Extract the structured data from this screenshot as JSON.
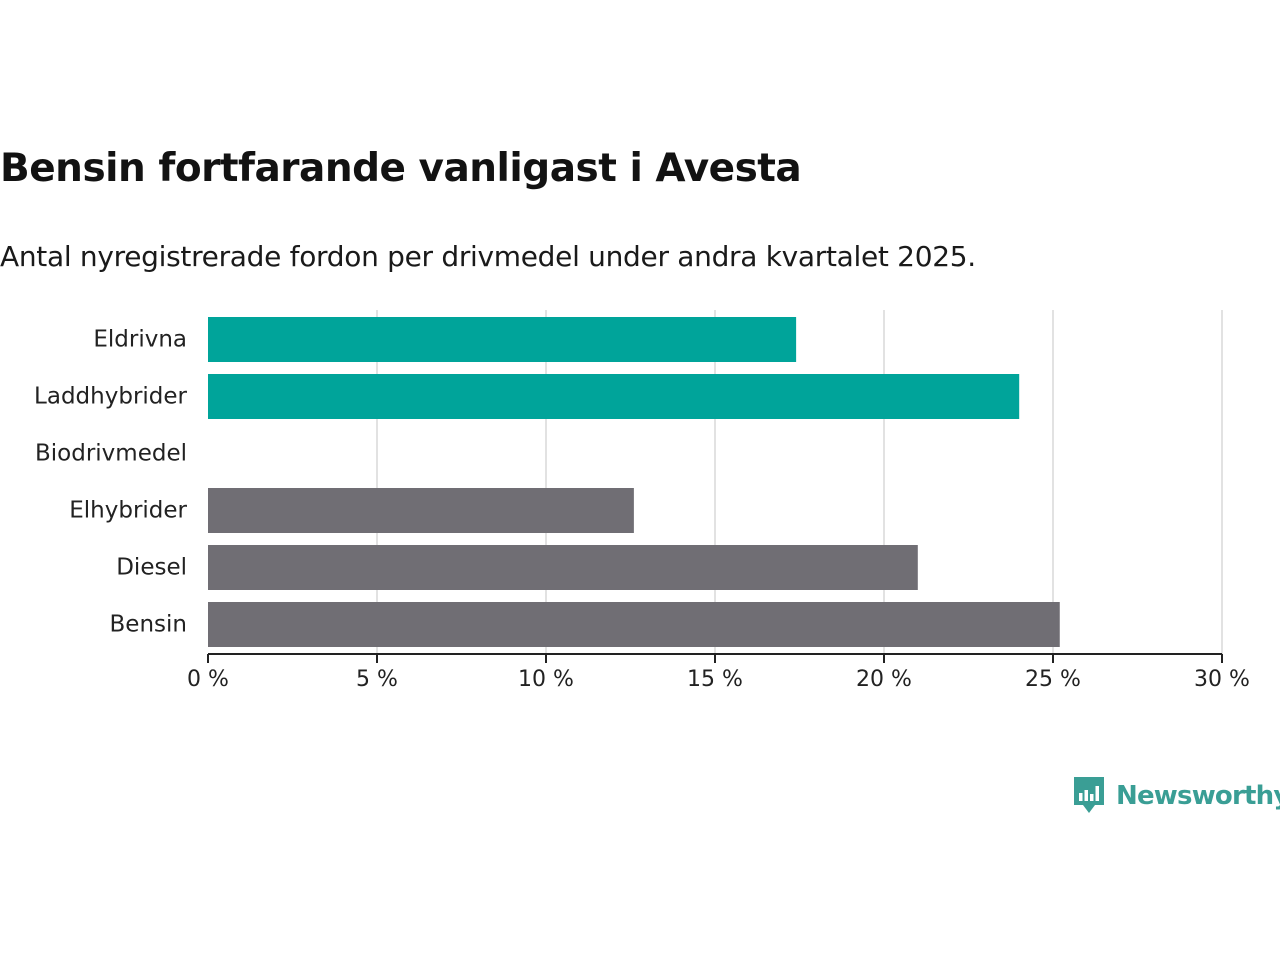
{
  "header": {
    "title": "Bensin fortfarande vanligast i Avesta",
    "subtitle": "Antal nyregistrerade fordon per drivmedel under andra kvartalet 2025."
  },
  "brand": {
    "name": "Newsworthy",
    "icon": "newsworthy-logo-icon",
    "color": "#3a9e95"
  },
  "chart_data": {
    "type": "bar",
    "orientation": "horizontal",
    "categories": [
      "Eldrivna",
      "Laddhybrider",
      "Biodrivmedel",
      "Elhybrider",
      "Diesel",
      "Bensin"
    ],
    "values": [
      17.4,
      24.0,
      0,
      12.6,
      21.0,
      25.2
    ],
    "colors": [
      "#00a49a",
      "#00a49a",
      "#00a49a",
      "#706e74",
      "#706e74",
      "#706e74"
    ],
    "xlim": [
      0,
      30
    ],
    "xticks": [
      0,
      5,
      10,
      15,
      20,
      25,
      30
    ],
    "xtick_labels": [
      "0 %",
      "5 %",
      "10 %",
      "15 %",
      "20 %",
      "25 %",
      "30 %"
    ],
    "grid": "vertical",
    "title": "Bensin fortfarande vanligast i Avesta",
    "subtitle": "Antal nyregistrerade fordon per drivmedel under andra kvartalet 2025.",
    "xlabel": "",
    "ylabel": ""
  }
}
